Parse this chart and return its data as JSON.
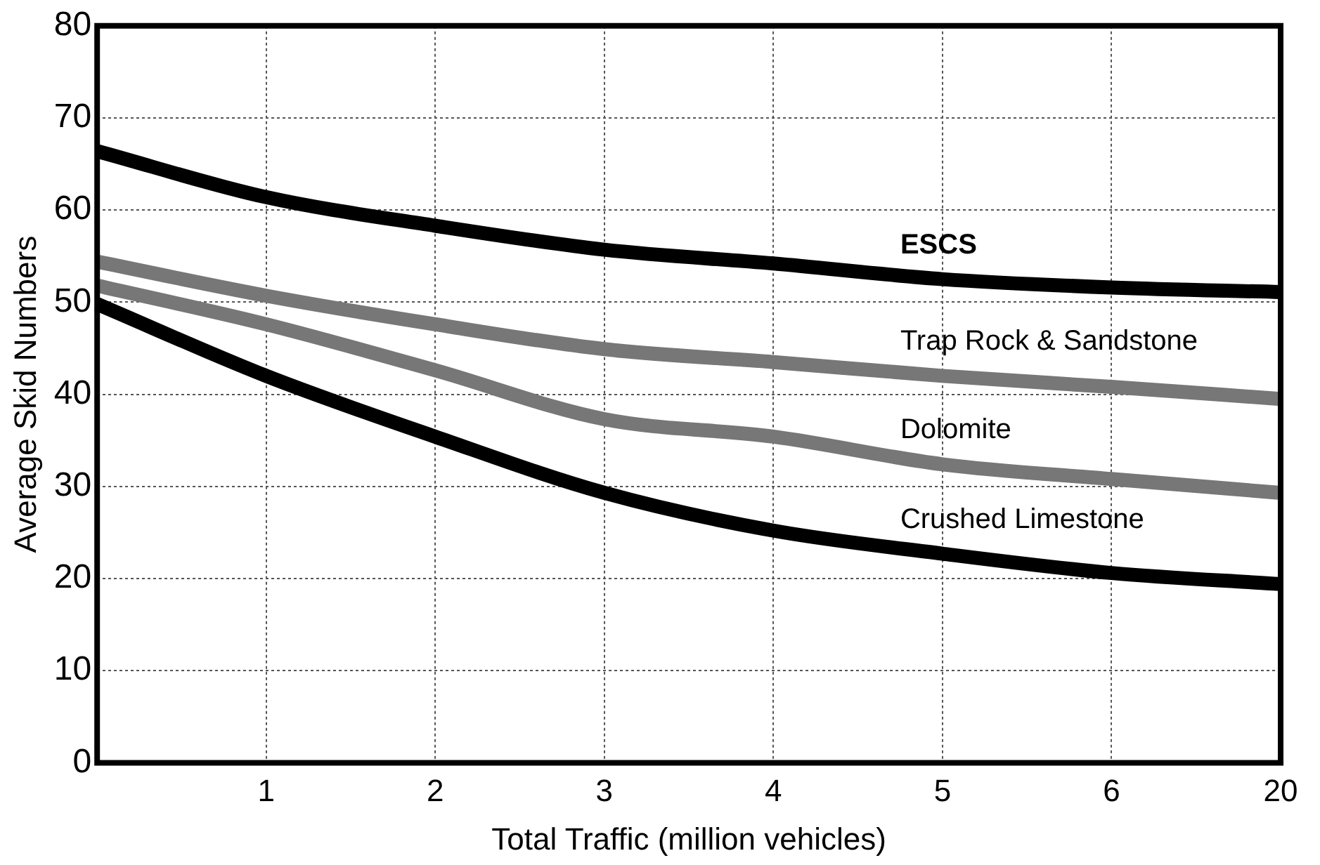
{
  "chart_data": {
    "type": "line",
    "xlabel": "Total Traffic (million vehicles)",
    "ylabel": "Average Skid Numbers",
    "categories": [
      null,
      "1",
      "2",
      "3",
      "4",
      "5",
      "6",
      "20"
    ],
    "ylim": [
      0,
      80
    ],
    "yticks": [
      0,
      10,
      20,
      30,
      40,
      50,
      60,
      70,
      80
    ],
    "grid": true,
    "legend": false,
    "marker": "none",
    "line_style": "solid",
    "series": [
      {
        "name": "ESCS",
        "color": "#000000",
        "values": [
          66.4,
          61.4,
          58.3,
          55.7,
          54.2,
          52.5,
          51.6,
          51.1
        ]
      },
      {
        "name": "Trap Rock & Sandstone",
        "color": "#777777",
        "values": [
          54.4,
          50.7,
          47.6,
          44.9,
          43.5,
          42.0,
          40.8,
          39.5
        ]
      },
      {
        "name": "Dolomite",
        "color": "#777777",
        "values": [
          51.8,
          47.6,
          42.6,
          37.3,
          35.4,
          32.4,
          30.8,
          29.3
        ]
      },
      {
        "name": "Crushed Limestone",
        "color": "#000000",
        "values": [
          49.8,
          42.0,
          35.4,
          29.3,
          25.2,
          22.7,
          20.6,
          19.4
        ]
      }
    ]
  }
}
